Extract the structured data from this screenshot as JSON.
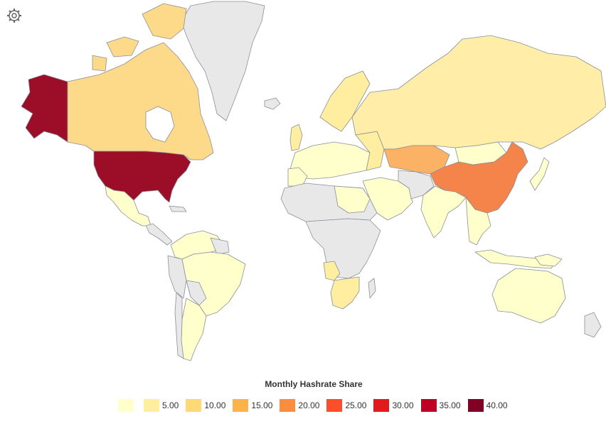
{
  "legend": {
    "title": "Monthly Hashrate Share",
    "bins": [
      {
        "label": "",
        "color": "#ffffcc"
      },
      {
        "label": "5.00",
        "color": "#ffeda0"
      },
      {
        "label": "10.00",
        "color": "#fed976"
      },
      {
        "label": "15.00",
        "color": "#feb24c"
      },
      {
        "label": "20.00",
        "color": "#fd8d3c"
      },
      {
        "label": "25.00",
        "color": "#fc4e2a"
      },
      {
        "label": "30.00",
        "color": "#e31a1c"
      },
      {
        "label": "35.00",
        "color": "#bd0026"
      },
      {
        "label": "40.00",
        "color": "#800026"
      }
    ]
  },
  "colors": {
    "no_data": "#e8e8e8",
    "outline": "#8a8f99",
    "usa": "#9c0e28",
    "alaska": "#9c0e28",
    "china": "#f5844a",
    "kazakhstan": "#fbb265",
    "russia": "#ffeda8",
    "canada": "#fdd98a",
    "europe": "#ffeda0",
    "low": "#ffffcc"
  },
  "settings_icon": "gear-icon"
}
